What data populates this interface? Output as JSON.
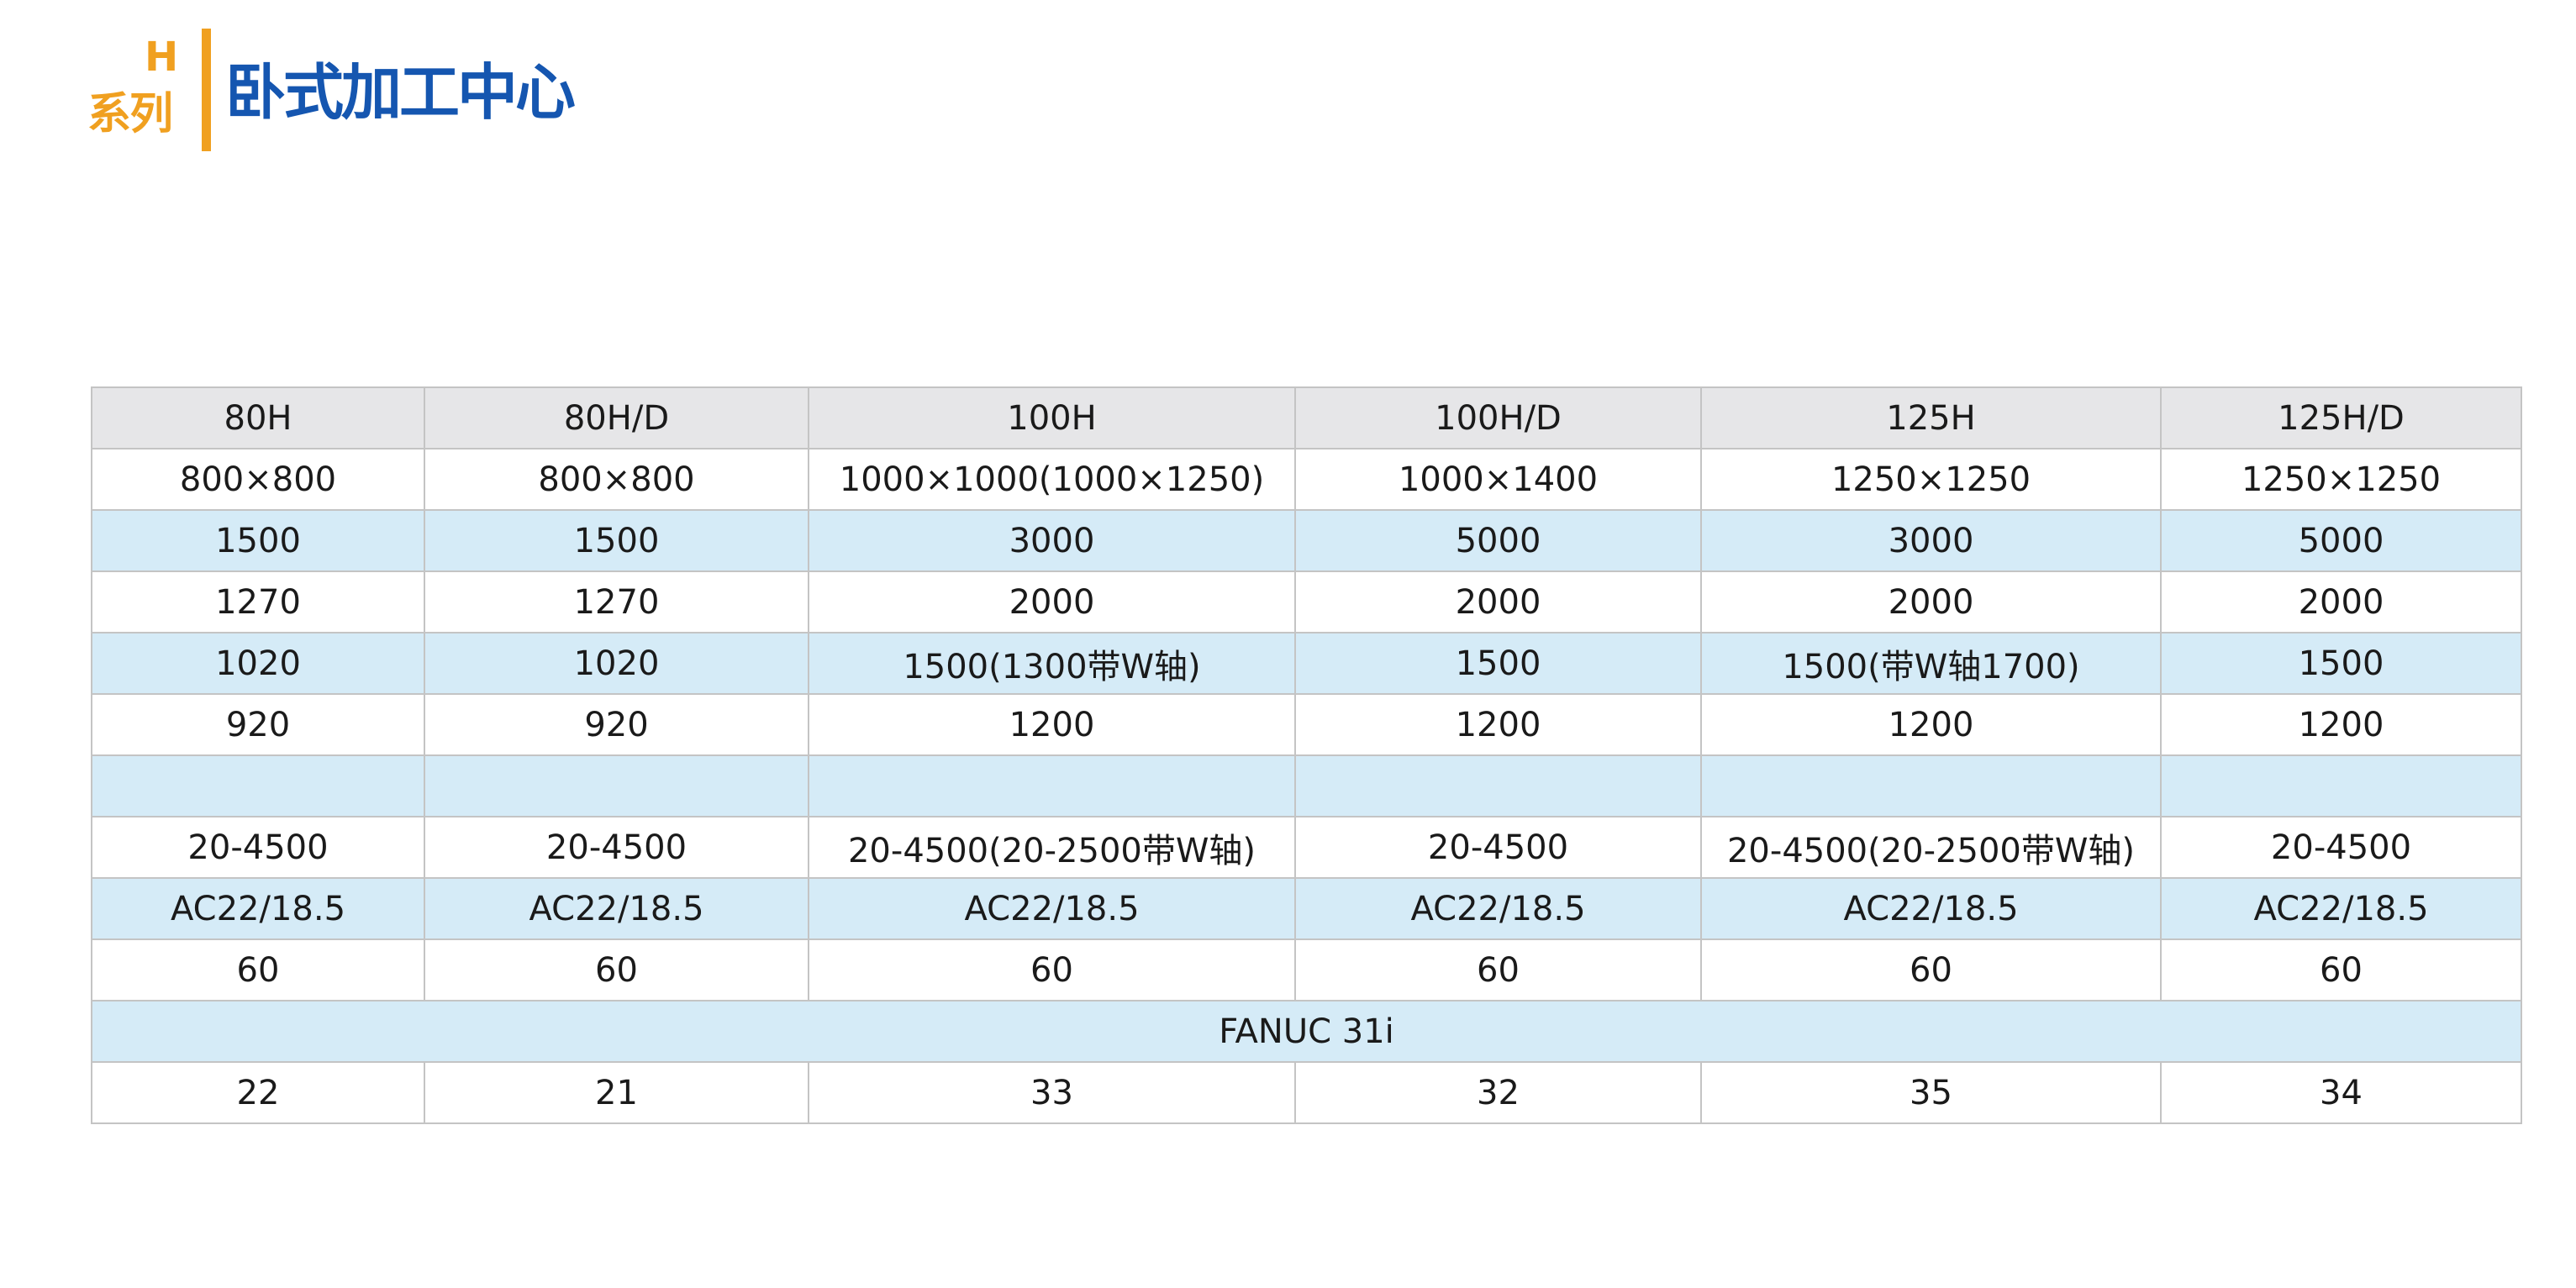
{
  "brand": {
    "series_letter": "H",
    "series_label": "系列",
    "title": "卧式加工中心"
  },
  "colors": {
    "accent_orange": "#f0a020",
    "title_blue": "#1556b0",
    "header_gray": "#e6e6e8",
    "stripe_blue": "#d5ebf7",
    "border": "#c4c4c4"
  },
  "table": {
    "columns": [
      "80H",
      "80H/D",
      "100H",
      "100H/D",
      "125H",
      "125H/D"
    ],
    "rows": [
      [
        "800×800",
        "800×800",
        "1000×1000(1000×1250)",
        "1000×1400",
        "1250×1250",
        "1250×1250"
      ],
      [
        "1500",
        "1500",
        "3000",
        "5000",
        "3000",
        "5000"
      ],
      [
        "1270",
        "1270",
        "2000",
        "2000",
        "2000",
        "2000"
      ],
      [
        "1020",
        "1020",
        "1500(1300带W轴)",
        "1500",
        "1500(带W轴1700)",
        "1500"
      ],
      [
        "920",
        "920",
        "1200",
        "1200",
        "1200",
        "1200"
      ],
      [
        "",
        "",
        "",
        "",
        "",
        ""
      ],
      [
        "20-4500",
        "20-4500",
        "20-4500(20-2500带W轴)",
        "20-4500",
        "20-4500(20-2500带W轴)",
        "20-4500"
      ],
      [
        "AC22/18.5",
        "AC22/18.5",
        "AC22/18.5",
        "AC22/18.5",
        "AC22/18.5",
        "AC22/18.5"
      ],
      [
        "60",
        "60",
        "60",
        "60",
        "60",
        "60"
      ]
    ],
    "cnc_system": "FANUC 31i",
    "last_row": [
      "22",
      "21",
      "33",
      "32",
      "35",
      "34"
    ]
  }
}
